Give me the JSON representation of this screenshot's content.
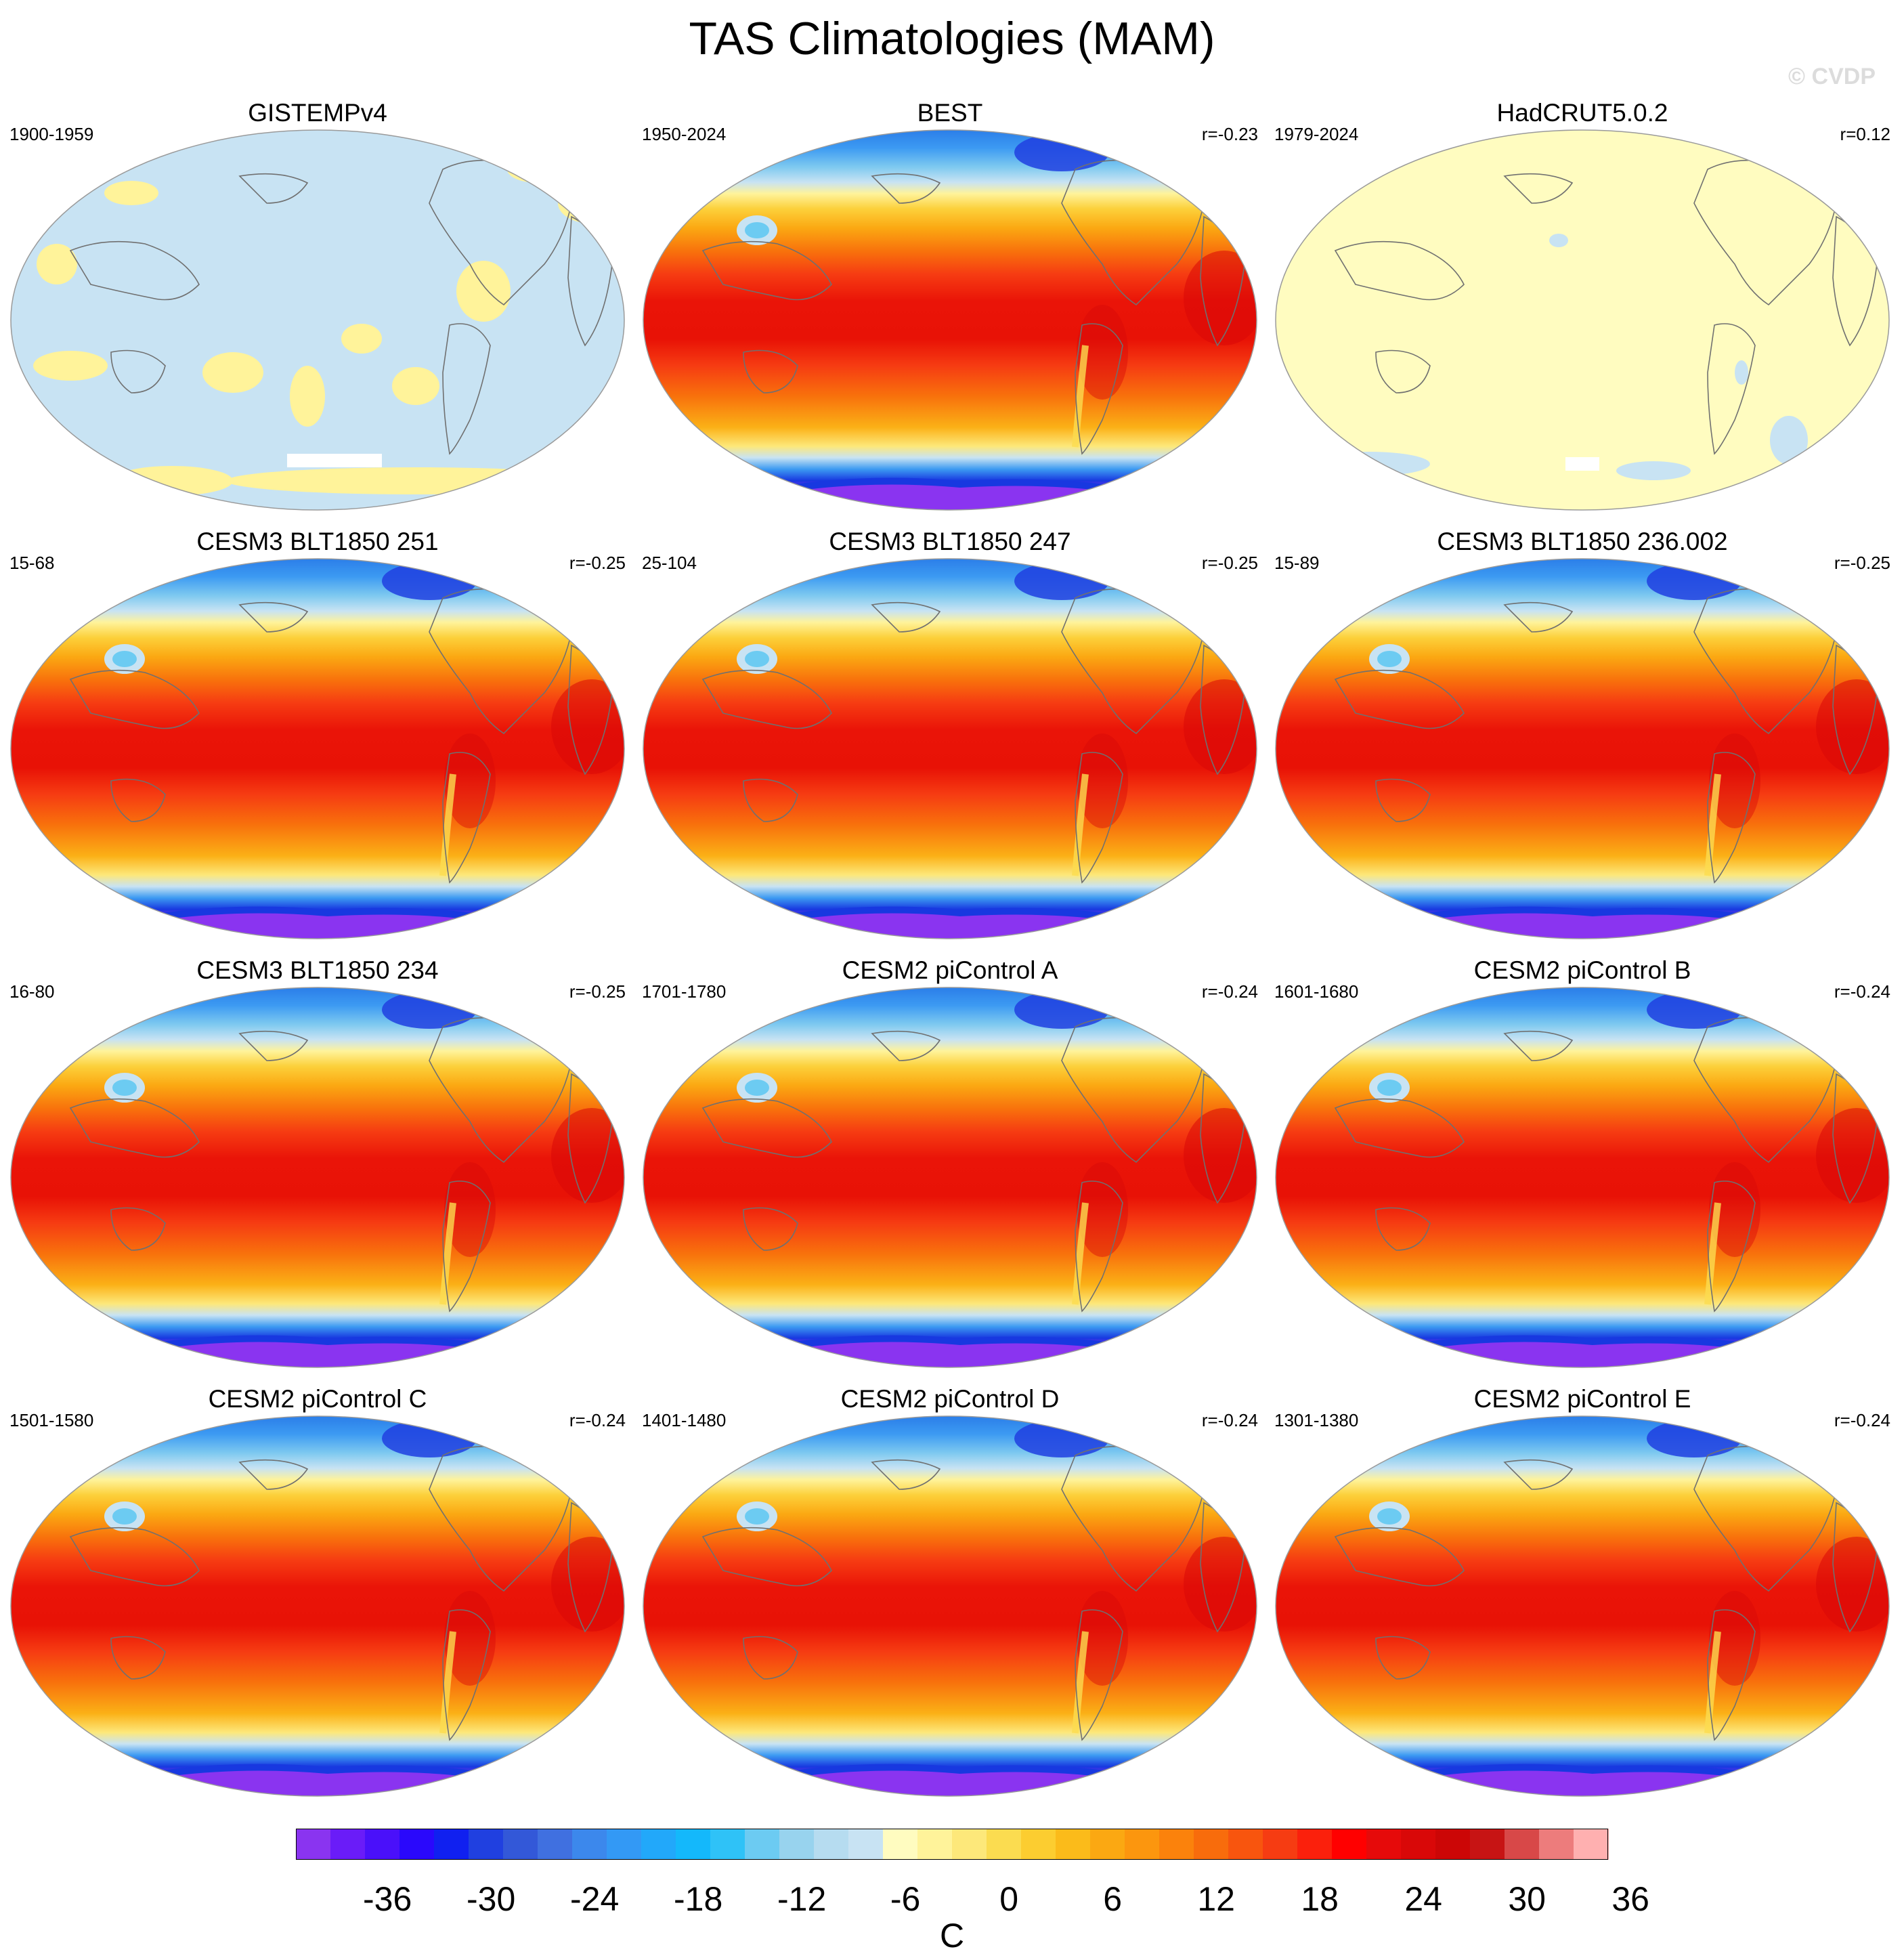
{
  "title": "TAS Climatologies (MAM)",
  "watermark": "© CVDP",
  "panels": [
    {
      "name": "GISTEMPv4",
      "period": "1900-1959",
      "corr": "",
      "style": "anomaly_blue"
    },
    {
      "name": "BEST",
      "period": "1950-2024",
      "corr": "r=-0.23",
      "style": "obs"
    },
    {
      "name": "HadCRUT5.0.2",
      "period": "1979-2024",
      "corr": "r=0.12",
      "style": "anomaly_yellow"
    },
    {
      "name": "CESM3 BLT1850 251",
      "period": "15-68",
      "corr": "r=-0.25",
      "style": "model"
    },
    {
      "name": "CESM3 BLT1850 247",
      "period": "25-104",
      "corr": "r=-0.25",
      "style": "model"
    },
    {
      "name": "CESM3 BLT1850 236.002",
      "period": "15-89",
      "corr": "r=-0.25",
      "style": "model"
    },
    {
      "name": "CESM3 BLT1850 234",
      "period": "16-80",
      "corr": "r=-0.25",
      "style": "model"
    },
    {
      "name": "CESM2 piControl A",
      "period": "1701-1780",
      "corr": "r=-0.24",
      "style": "model"
    },
    {
      "name": "CESM2 piControl B",
      "period": "1601-1680",
      "corr": "r=-0.24",
      "style": "model"
    },
    {
      "name": "CESM2 piControl C",
      "period": "1501-1580",
      "corr": "r=-0.24",
      "style": "model"
    },
    {
      "name": "CESM2 piControl D",
      "period": "1401-1480",
      "corr": "r=-0.24",
      "style": "model"
    },
    {
      "name": "CESM2 piControl E",
      "period": "1301-1380",
      "corr": "r=-0.24",
      "style": "model"
    }
  ],
  "colorbar": {
    "unit": "C",
    "tick_labels": [
      "-36",
      "-30",
      "-24",
      "-18",
      "-12",
      "-6",
      "0",
      "6",
      "12",
      "18",
      "24",
      "30",
      "36"
    ],
    "colors": [
      "#8a34f0",
      "#6a1cf8",
      "#4a10fa",
      "#2a08fc",
      "#1020f0",
      "#2040e0",
      "#3358d8",
      "#4070e0",
      "#3c88ec",
      "#3399f5",
      "#22a8fa",
      "#14b8fb",
      "#2fc2f7",
      "#6ccbf2",
      "#98d3ee",
      "#b6dcf0",
      "#c8e3f3",
      "#fffcc0",
      "#fff39a",
      "#fde87a",
      "#fbdc50",
      "#fccd30",
      "#fbbb1a",
      "#fba812",
      "#fc960e",
      "#fb820c",
      "#f86c0c",
      "#f8550e",
      "#f63c12",
      "#fb200c",
      "#ff0000",
      "#e60a0a",
      "#d90808",
      "#cc0606",
      "#c71414",
      "#d84848",
      "#ed7c7c",
      "#ffb0b0"
    ]
  }
}
